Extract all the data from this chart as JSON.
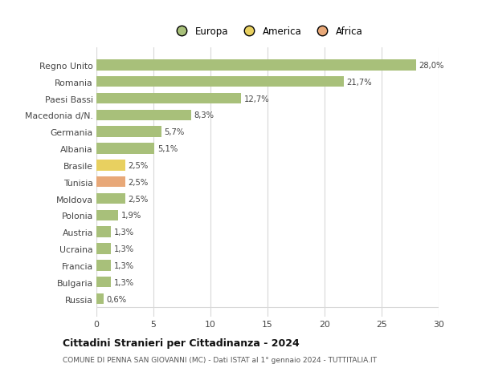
{
  "countries": [
    "Regno Unito",
    "Romania",
    "Paesi Bassi",
    "Macedonia d/N.",
    "Germania",
    "Albania",
    "Brasile",
    "Tunisia",
    "Moldova",
    "Polonia",
    "Austria",
    "Ucraina",
    "Francia",
    "Bulgaria",
    "Russia"
  ],
  "values": [
    28.0,
    21.7,
    12.7,
    8.3,
    5.7,
    5.1,
    2.5,
    2.5,
    2.5,
    1.9,
    1.3,
    1.3,
    1.3,
    1.3,
    0.6
  ],
  "labels": [
    "28,0%",
    "21,7%",
    "12,7%",
    "8,3%",
    "5,7%",
    "5,1%",
    "2,5%",
    "2,5%",
    "2,5%",
    "1,9%",
    "1,3%",
    "1,3%",
    "1,3%",
    "1,3%",
    "0,6%"
  ],
  "continents": [
    "Europa",
    "Europa",
    "Europa",
    "Europa",
    "Europa",
    "Europa",
    "America",
    "Africa",
    "Europa",
    "Europa",
    "Europa",
    "Europa",
    "Europa",
    "Europa",
    "Europa"
  ],
  "colors": {
    "Europa": "#a8c07a",
    "America": "#e8d060",
    "Africa": "#e8a878"
  },
  "title": "Cittadini Stranieri per Cittadinanza - 2024",
  "subtitle": "COMUNE DI PENNA SAN GIOVANNI (MC) - Dati ISTAT al 1° gennaio 2024 - TUTTITALIA.IT",
  "xlim": [
    0,
    30
  ],
  "xticks": [
    0,
    5,
    10,
    15,
    20,
    25,
    30
  ],
  "background_color": "#ffffff",
  "grid_color": "#d8d8d8",
  "bar_height": 0.65
}
